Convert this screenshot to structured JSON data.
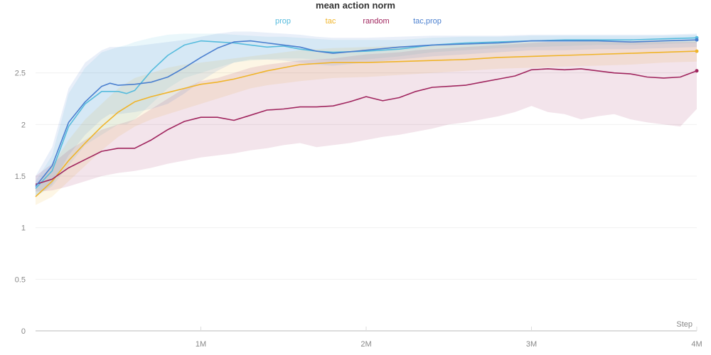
{
  "chart_data": {
    "type": "line",
    "title": "mean action norm",
    "xlabel": "Step",
    "ylabel": "",
    "xlim": [
      0,
      4000000
    ],
    "ylim": [
      0,
      3.0
    ],
    "grid": true,
    "legend_position": "top-center",
    "x_ticks": [
      {
        "value": 1000000,
        "label": "1M"
      },
      {
        "value": 2000000,
        "label": "2M"
      },
      {
        "value": 3000000,
        "label": "3M"
      },
      {
        "value": 4000000,
        "label": "4M"
      }
    ],
    "y_ticks": [
      {
        "value": 0,
        "label": "0"
      },
      {
        "value": 0.5,
        "label": "0.5"
      },
      {
        "value": 1,
        "label": "1"
      },
      {
        "value": 1.5,
        "label": "1.5"
      },
      {
        "value": 2,
        "label": "2"
      },
      {
        "value": 2.5,
        "label": "2.5"
      }
    ],
    "series": [
      {
        "name": "prop",
        "color": "#55bbdd",
        "x": [
          0,
          100000,
          200000,
          300000,
          400000,
          500000,
          550000,
          600000,
          700000,
          800000,
          900000,
          1000000,
          1100000,
          1200000,
          1300000,
          1400000,
          1500000,
          1600000,
          1700000,
          1800000,
          2000000,
          2200000,
          2400000,
          2600000,
          2800000,
          3000000,
          3200000,
          3400000,
          3600000,
          3800000,
          4000000
        ],
        "y": [
          1.38,
          1.55,
          1.98,
          2.2,
          2.32,
          2.32,
          2.3,
          2.33,
          2.52,
          2.67,
          2.77,
          2.81,
          2.8,
          2.79,
          2.77,
          2.75,
          2.76,
          2.73,
          2.71,
          2.7,
          2.71,
          2.73,
          2.77,
          2.79,
          2.8,
          2.81,
          2.82,
          2.82,
          2.82,
          2.83,
          2.84
        ],
        "lower": [
          1.3,
          1.4,
          1.6,
          1.8,
          1.9,
          2.0,
          2.0,
          2.05,
          2.2,
          2.35,
          2.45,
          2.5,
          2.55,
          2.6,
          2.62,
          2.63,
          2.64,
          2.64,
          2.63,
          2.62,
          2.63,
          2.66,
          2.7,
          2.72,
          2.74,
          2.75,
          2.76,
          2.77,
          2.77,
          2.78,
          2.79
        ],
        "upper": [
          1.45,
          1.7,
          2.3,
          2.55,
          2.7,
          2.75,
          2.77,
          2.8,
          2.84,
          2.87,
          2.88,
          2.88,
          2.88,
          2.87,
          2.86,
          2.85,
          2.85,
          2.84,
          2.83,
          2.82,
          2.82,
          2.82,
          2.84,
          2.85,
          2.85,
          2.86,
          2.86,
          2.86,
          2.86,
          2.86,
          2.87
        ]
      },
      {
        "name": "tac",
        "color": "#f0b429",
        "x": [
          0,
          100000,
          200000,
          300000,
          400000,
          500000,
          600000,
          700000,
          800000,
          900000,
          1000000,
          1100000,
          1200000,
          1300000,
          1400000,
          1500000,
          1600000,
          1800000,
          2000000,
          2200000,
          2400000,
          2600000,
          2800000,
          3000000,
          3200000,
          3400000,
          3600000,
          3800000,
          4000000
        ],
        "y": [
          1.3,
          1.45,
          1.65,
          1.82,
          1.98,
          2.12,
          2.22,
          2.27,
          2.31,
          2.35,
          2.39,
          2.41,
          2.44,
          2.48,
          2.52,
          2.55,
          2.58,
          2.6,
          2.6,
          2.61,
          2.62,
          2.63,
          2.65,
          2.66,
          2.67,
          2.68,
          2.69,
          2.7,
          2.71
        ],
        "lower": [
          1.22,
          1.3,
          1.45,
          1.6,
          1.75,
          1.88,
          1.98,
          2.05,
          2.1,
          2.15,
          2.2,
          2.25,
          2.3,
          2.35,
          2.38,
          2.4,
          2.42,
          2.45,
          2.46,
          2.48,
          2.5,
          2.52,
          2.54,
          2.55,
          2.56,
          2.57,
          2.58,
          2.6,
          2.61
        ],
        "upper": [
          1.38,
          1.6,
          1.85,
          2.05,
          2.2,
          2.35,
          2.45,
          2.5,
          2.55,
          2.58,
          2.6,
          2.62,
          2.64,
          2.66,
          2.68,
          2.7,
          2.72,
          2.74,
          2.75,
          2.76,
          2.77,
          2.78,
          2.79,
          2.8,
          2.8,
          2.81,
          2.81,
          2.82,
          2.82
        ]
      },
      {
        "name": "random",
        "color": "#a0255e",
        "x": [
          0,
          100000,
          200000,
          300000,
          400000,
          500000,
          600000,
          700000,
          800000,
          900000,
          1000000,
          1100000,
          1200000,
          1300000,
          1400000,
          1500000,
          1600000,
          1700000,
          1800000,
          1900000,
          2000000,
          2100000,
          2200000,
          2300000,
          2400000,
          2500000,
          2600000,
          2700000,
          2800000,
          2900000,
          3000000,
          3100000,
          3200000,
          3300000,
          3400000,
          3500000,
          3600000,
          3700000,
          3800000,
          3900000,
          4000000
        ],
        "y": [
          1.42,
          1.47,
          1.58,
          1.66,
          1.74,
          1.77,
          1.77,
          1.85,
          1.95,
          2.03,
          2.07,
          2.07,
          2.04,
          2.09,
          2.14,
          2.15,
          2.17,
          2.17,
          2.18,
          2.22,
          2.27,
          2.23,
          2.26,
          2.32,
          2.36,
          2.37,
          2.38,
          2.41,
          2.44,
          2.47,
          2.53,
          2.54,
          2.53,
          2.54,
          2.52,
          2.5,
          2.49,
          2.46,
          2.45,
          2.46,
          2.52
        ],
        "lower": [
          1.35,
          1.36,
          1.4,
          1.45,
          1.5,
          1.53,
          1.55,
          1.58,
          1.62,
          1.65,
          1.68,
          1.7,
          1.72,
          1.75,
          1.77,
          1.8,
          1.82,
          1.78,
          1.8,
          1.82,
          1.85,
          1.88,
          1.9,
          1.93,
          1.96,
          2.0,
          2.02,
          2.05,
          2.08,
          2.12,
          2.18,
          2.12,
          2.1,
          2.05,
          2.08,
          2.1,
          2.05,
          2.02,
          2.0,
          1.98,
          2.15
        ],
        "upper": [
          1.5,
          1.62,
          1.75,
          1.85,
          1.95,
          2.0,
          2.05,
          2.15,
          2.25,
          2.35,
          2.42,
          2.45,
          2.5,
          2.55,
          2.58,
          2.6,
          2.62,
          2.63,
          2.64,
          2.66,
          2.68,
          2.69,
          2.7,
          2.72,
          2.73,
          2.74,
          2.75,
          2.76,
          2.77,
          2.78,
          2.79,
          2.8,
          2.8,
          2.8,
          2.8,
          2.8,
          2.8,
          2.8,
          2.8,
          2.8,
          2.8
        ]
      },
      {
        "name": "tac,prop",
        "color": "#4a7fcf",
        "x": [
          0,
          100000,
          200000,
          300000,
          400000,
          450000,
          500000,
          600000,
          700000,
          800000,
          900000,
          1000000,
          1100000,
          1200000,
          1300000,
          1400000,
          1500000,
          1600000,
          1700000,
          1800000,
          2000000,
          2200000,
          2400000,
          2600000,
          2800000,
          3000000,
          3200000,
          3400000,
          3600000,
          3800000,
          4000000
        ],
        "y": [
          1.4,
          1.6,
          2.02,
          2.22,
          2.37,
          2.4,
          2.38,
          2.39,
          2.41,
          2.46,
          2.55,
          2.65,
          2.74,
          2.8,
          2.81,
          2.79,
          2.77,
          2.75,
          2.71,
          2.69,
          2.72,
          2.75,
          2.77,
          2.78,
          2.79,
          2.81,
          2.81,
          2.81,
          2.8,
          2.81,
          2.82
        ],
        "lower": [
          1.3,
          1.42,
          1.7,
          1.9,
          2.05,
          2.1,
          2.1,
          2.12,
          2.15,
          2.2,
          2.3,
          2.42,
          2.52,
          2.6,
          2.63,
          2.63,
          2.62,
          2.6,
          2.58,
          2.57,
          2.6,
          2.63,
          2.66,
          2.68,
          2.7,
          2.72,
          2.72,
          2.73,
          2.73,
          2.74,
          2.75
        ],
        "upper": [
          1.5,
          1.78,
          2.35,
          2.6,
          2.72,
          2.75,
          2.75,
          2.76,
          2.78,
          2.8,
          2.82,
          2.85,
          2.88,
          2.9,
          2.9,
          2.89,
          2.88,
          2.87,
          2.85,
          2.84,
          2.84,
          2.85,
          2.86,
          2.86,
          2.86,
          2.87,
          2.87,
          2.87,
          2.87,
          2.87,
          2.88
        ]
      }
    ]
  }
}
